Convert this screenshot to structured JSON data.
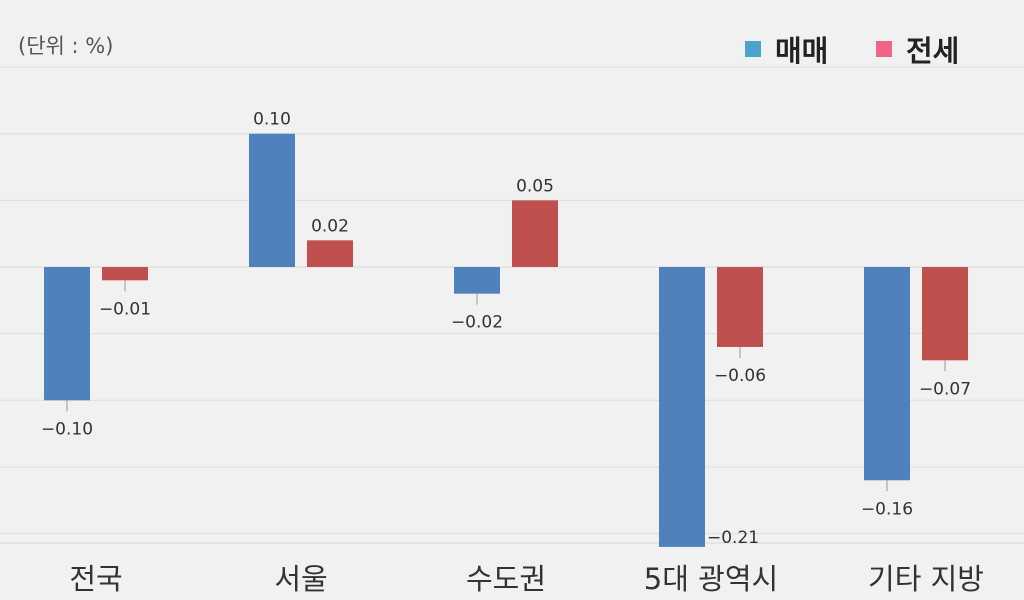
{
  "unit_label": "(단위 : %)",
  "chart_data": {
    "type": "bar",
    "categories": [
      "전국",
      "서울",
      "수도권",
      "5대 광역시",
      "기타 지방"
    ],
    "series": [
      {
        "name": "매매",
        "color": "#4f81bd",
        "legend_color": "#4aa3c8",
        "values": [
          -0.1,
          0.1,
          -0.02,
          -0.21,
          -0.16
        ]
      },
      {
        "name": "전세",
        "color": "#c0504d",
        "legend_color": "#f06485",
        "values": [
          -0.01,
          0.02,
          0.05,
          -0.06,
          -0.07
        ]
      }
    ],
    "data_labels": [
      [
        "−0.10",
        "0.10",
        "−0.02",
        "−0.21",
        "−0.16"
      ],
      [
        "−0.01",
        "0.02",
        "0.05",
        "−0.06",
        "−0.07"
      ]
    ],
    "ylim": [
      -0.21,
      0.15
    ],
    "grid": true,
    "legend_position": "top-right"
  }
}
